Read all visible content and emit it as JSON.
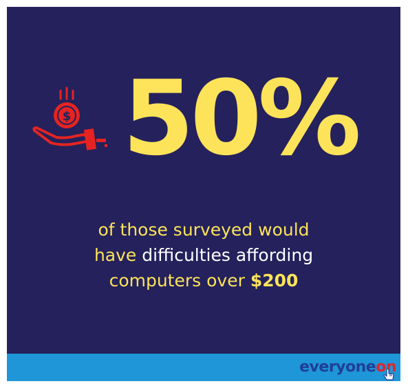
{
  "stat": {
    "value": "50%"
  },
  "caption": {
    "line1": "of those surveyed would",
    "line2_a": "have ",
    "line2_b": "difficulties affording",
    "line3_a": "computers over ",
    "line3_b": "$200"
  },
  "brand": {
    "name_a": "everyone",
    "name_b": "on"
  },
  "icons": {
    "hero": "hand-with-dollar-coin-icon",
    "logo": "pointer-hand-icon"
  },
  "colors": {
    "background": "#24215c",
    "accent_yellow": "#fde35a",
    "icon_red": "#e52421",
    "footer_blue": "#1e96d7",
    "logo_navy": "#1f3f97",
    "logo_red": "#e0262c"
  }
}
